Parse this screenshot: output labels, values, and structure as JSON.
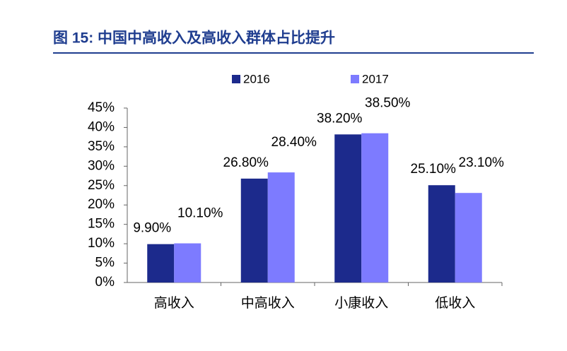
{
  "chart_data": {
    "type": "bar",
    "title": "图 15:  中国中高收入及高收入群体占比提升",
    "categories": [
      "高收入",
      "中高收入",
      "小康收入",
      "低收入"
    ],
    "series": [
      {
        "name": "2016",
        "color": "#1c2a8c",
        "values": [
          9.9,
          26.8,
          38.2,
          25.1
        ],
        "value_labels": [
          "9.90%",
          "26.80%",
          "38.20%",
          "25.10%"
        ]
      },
      {
        "name": "2017",
        "color": "#7d7bff",
        "values": [
          10.1,
          28.4,
          38.5,
          23.1
        ],
        "value_labels": [
          "10.10%",
          "28.40%",
          "38.50%",
          "23.10%"
        ]
      }
    ],
    "ylim": [
      0,
      45
    ],
    "yticks": [
      {
        "value": 0,
        "label": "0%"
      },
      {
        "value": 5,
        "label": "5%"
      },
      {
        "value": 10,
        "label": "10%"
      },
      {
        "value": 15,
        "label": "15%"
      },
      {
        "value": 20,
        "label": "20%"
      },
      {
        "value": 25,
        "label": "25%"
      },
      {
        "value": 30,
        "label": "30%"
      },
      {
        "value": 35,
        "label": "35%"
      },
      {
        "value": 40,
        "label": "40%"
      },
      {
        "value": 45,
        "label": "45%"
      }
    ],
    "grid": false,
    "legend": "top"
  }
}
